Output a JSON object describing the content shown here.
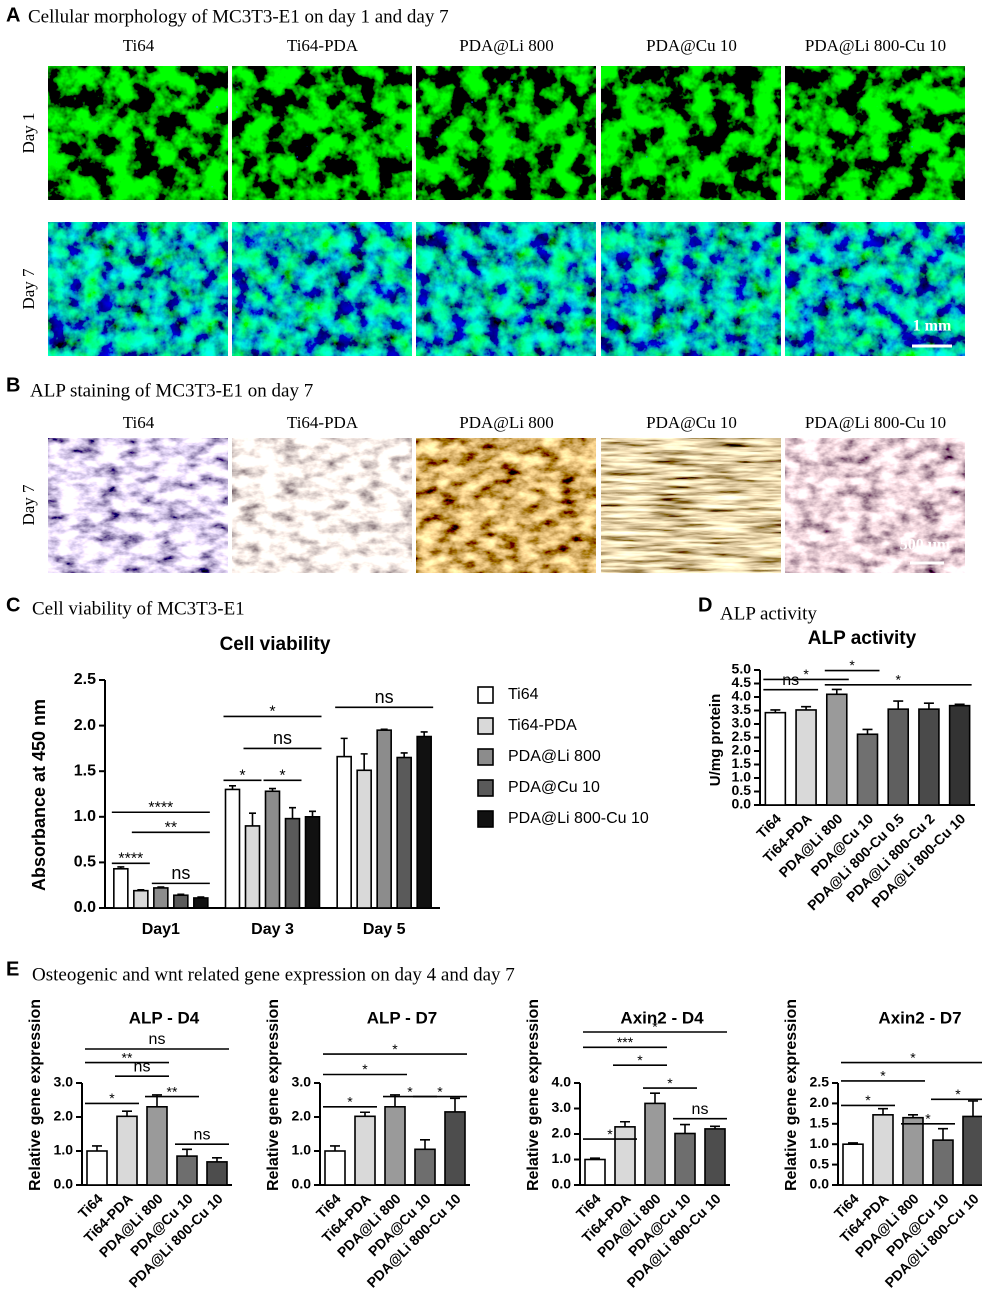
{
  "panels": {
    "A": {
      "letter": "A",
      "title": "Cellular morphology of MC3T3-E1 on day 1 and day 7",
      "columns": [
        "Ti64",
        "Ti64-PDA",
        "PDA@Li 800",
        "PDA@Cu 10",
        "PDA@Li 800-Cu 10"
      ],
      "rows": [
        "Day 1",
        "Day 7"
      ],
      "scale_bar": "1 mm"
    },
    "B": {
      "letter": "B",
      "title": "ALP staining of MC3T3-E1 on day 7",
      "columns": [
        "Ti64",
        "Ti64-PDA",
        "PDA@Li 800",
        "PDA@Cu 10",
        "PDA@Li 800-Cu 10"
      ],
      "rows": [
        "Day 7"
      ],
      "scale_bar": "500 μm"
    },
    "C": {
      "letter": "C",
      "title": "Cell viability of MC3T3-E1"
    },
    "D": {
      "letter": "D",
      "title": "ALP activity"
    },
    "E": {
      "letter": "E",
      "title": "Osteogenic and wnt related gene expression on day 4 and day 7"
    }
  },
  "chart_data": [
    {
      "type": "bar",
      "title": "Cell viability",
      "y_label": "Absorbance at 450 nm",
      "categories": [
        "Day1",
        "Day 3",
        "Day 5"
      ],
      "series": [
        {
          "name": "Ti64",
          "color": "#ffffff",
          "values": [
            0.43,
            1.3,
            1.66
          ],
          "errors": [
            0.02,
            0.04,
            0.2
          ]
        },
        {
          "name": "Ti64-PDA",
          "color": "#d9d9d9",
          "values": [
            0.19,
            0.9,
            1.51
          ],
          "errors": [
            0.01,
            0.14,
            0.18
          ]
        },
        {
          "name": "PDA@Li 800",
          "color": "#8c8c8c",
          "values": [
            0.22,
            1.28,
            1.95
          ],
          "errors": [
            0.01,
            0.03,
            0.01
          ]
        },
        {
          "name": "PDA@Cu 10",
          "color": "#5a5a5a",
          "values": [
            0.14,
            0.98,
            1.65
          ],
          "errors": [
            0.01,
            0.12,
            0.05
          ]
        },
        {
          "name": "PDA@Li 800-Cu 10",
          "color": "#111111",
          "values": [
            0.11,
            1.0,
            1.88
          ],
          "errors": [
            0.01,
            0.06,
            0.05
          ]
        }
      ],
      "ylim": [
        0,
        2.5
      ],
      "yticks": [
        {
          "value": 0,
          "label": "0.0"
        },
        0.5,
        {
          "value": 1,
          "label": "1.0"
        },
        1.5,
        {
          "value": 2,
          "label": "2.0"
        },
        2.5
      ],
      "annotations": [
        "****",
        "**",
        "****",
        "ns",
        "*",
        "ns",
        "*",
        "*",
        "ns"
      ]
    },
    {
      "type": "bar",
      "title": "ALP activity",
      "y_label": "U/mg protein",
      "categories": [
        "Ti64",
        "Ti64-PDA",
        "PDA@Li 800",
        "PDA@Cu 10",
        "PDA@Li 800-Cu 0.5",
        "PDA@Li 800-Cu 2",
        "PDA@Li 800-Cu 10"
      ],
      "values": [
        3.42,
        3.52,
        4.1,
        2.62,
        3.55,
        3.55,
        3.68
      ],
      "errors": [
        0.1,
        0.12,
        0.18,
        0.18,
        0.3,
        0.22,
        0.05
      ],
      "colors": [
        "#ffffff",
        "#d9d9d9",
        "#9a9a9a",
        "#707070",
        "#5f5f5f",
        "#4a4a4a",
        "#333333"
      ],
      "ylim": [
        0,
        5
      ],
      "yticks": [
        {
          "value": 0,
          "label": "0.0"
        },
        0.5,
        {
          "value": 1,
          "label": "1.0"
        },
        1.5,
        {
          "value": 2,
          "label": "2.0"
        },
        2.5,
        {
          "value": 3,
          "label": "3.0"
        },
        3.5,
        {
          "value": 4,
          "label": "4.0"
        },
        4.5,
        {
          "value": 5,
          "label": "5.0"
        }
      ],
      "annotations": [
        "*",
        "*",
        "ns",
        "*"
      ]
    },
    {
      "type": "bar",
      "title": "ALP -  D4",
      "y_label": "Relative gene expression",
      "categories": [
        "Ti64",
        "Ti64-PDA",
        "PDA@Li 800",
        "PDA@Cu 10",
        "PDA@Li 800-Cu 10"
      ],
      "values": [
        1.0,
        2.02,
        2.3,
        0.85,
        0.68
      ],
      "errors": [
        0.15,
        0.15,
        0.35,
        0.2,
        0.12
      ],
      "colors": [
        "#ffffff",
        "#d9d9d9",
        "#9a9a9a",
        "#6e6e6e",
        "#4d4d4d"
      ],
      "ylim": [
        0,
        3
      ],
      "yticks": [
        {
          "value": 0,
          "label": "0.0"
        },
        {
          "value": 1,
          "label": "1.0"
        },
        {
          "value": 2,
          "label": "2.0"
        },
        {
          "value": 3,
          "label": "3.0"
        }
      ],
      "annotations": [
        "*",
        "ns",
        "**",
        "ns",
        "**",
        "ns"
      ]
    },
    {
      "type": "bar",
      "title": "ALP - D7",
      "y_label": "Relative gene expression",
      "categories": [
        "Ti64",
        "Ti64-PDA",
        "PDA@Li 800",
        "PDA@Cu 10",
        "PDA@Li 800-Cu 10"
      ],
      "values": [
        1.0,
        2.02,
        2.3,
        1.05,
        2.15
      ],
      "errors": [
        0.15,
        0.12,
        0.35,
        0.28,
        0.4
      ],
      "colors": [
        "#ffffff",
        "#d9d9d9",
        "#9a9a9a",
        "#6e6e6e",
        "#4d4d4d"
      ],
      "ylim": [
        0,
        3
      ],
      "yticks": [
        {
          "value": 0,
          "label": "0.0"
        },
        {
          "value": 1,
          "label": "1.0"
        },
        {
          "value": 2,
          "label": "2.0"
        },
        {
          "value": 3,
          "label": "3.0"
        }
      ],
      "annotations": [
        "*",
        "*",
        "*",
        "*",
        "*"
      ]
    },
    {
      "type": "bar",
      "title": "Axin2 - D4",
      "y_label": "Relative gene expression",
      "categories": [
        "Ti64",
        "Ti64-PDA",
        "PDA@Li 800",
        "PDA@Cu 10",
        "PDA@Li 800-Cu 10"
      ],
      "values": [
        1.0,
        2.28,
        3.2,
        2.02,
        2.2
      ],
      "errors": [
        0.05,
        0.2,
        0.4,
        0.35,
        0.1
      ],
      "colors": [
        "#ffffff",
        "#d9d9d9",
        "#9a9a9a",
        "#6e6e6e",
        "#4d4d4d"
      ],
      "ylim": [
        0,
        4
      ],
      "yticks": [
        {
          "value": 0,
          "label": "0.0"
        },
        {
          "value": 1,
          "label": "1.0"
        },
        {
          "value": 2,
          "label": "2.0"
        },
        {
          "value": 3,
          "label": "3.0"
        },
        {
          "value": 4,
          "label": "4.0"
        }
      ],
      "annotations": [
        "*",
        "ns",
        "*",
        "*",
        "***",
        "*"
      ]
    },
    {
      "type": "bar",
      "title": "Axin2 - D7",
      "y_label": "Relative gene expression",
      "categories": [
        "Ti64",
        "Ti64-PDA",
        "PDA@Li 800",
        "PDA@Cu 10",
        "PDA@Li 800-Cu 10"
      ],
      "values": [
        1.0,
        1.72,
        1.65,
        1.1,
        1.68
      ],
      "errors": [
        0.03,
        0.15,
        0.07,
        0.28,
        0.38
      ],
      "colors": [
        "#ffffff",
        "#d9d9d9",
        "#9a9a9a",
        "#6e6e6e",
        "#4d4d4d"
      ],
      "ylim": [
        0,
        2.5
      ],
      "yticks": [
        {
          "value": 0,
          "label": "0.0"
        },
        0.5,
        {
          "value": 1,
          "label": "1.0"
        },
        1.5,
        {
          "value": 2,
          "label": "2.0"
        },
        2.5
      ],
      "annotations": [
        "*",
        "*",
        "*",
        "*",
        "*"
      ]
    }
  ]
}
